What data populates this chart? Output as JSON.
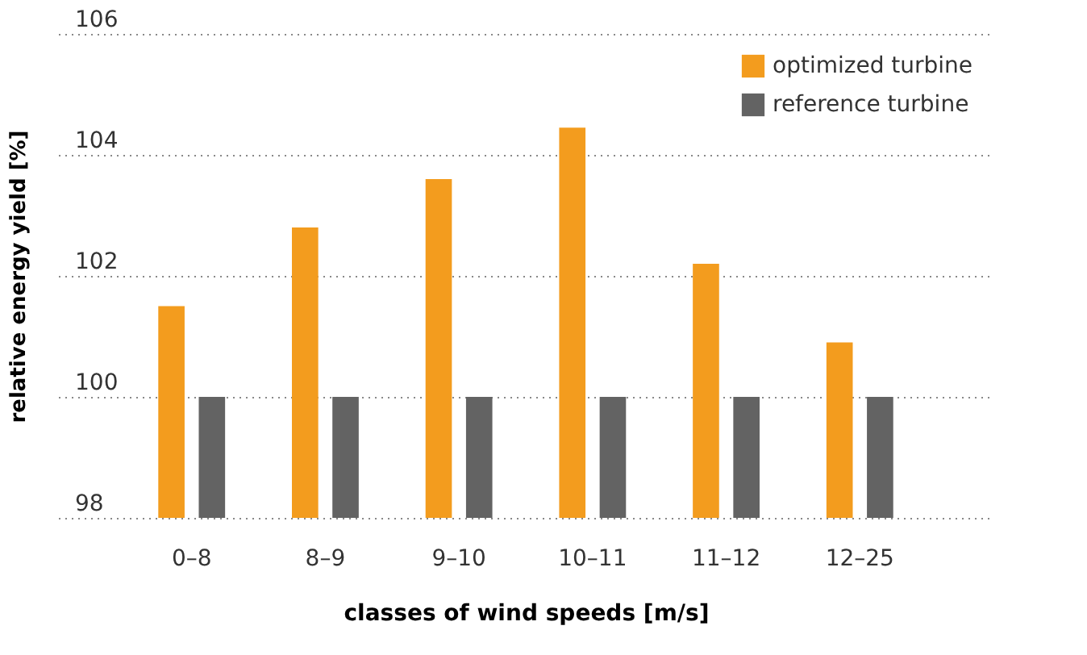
{
  "chart_data": {
    "type": "bar",
    "xlabel": "classes of wind speeds [m/s]",
    "ylabel": "relative energy yield [%]",
    "categories": [
      "0–8",
      "8–9",
      "9–10",
      "10–11",
      "11–12",
      "12–25"
    ],
    "series": [
      {
        "name": "optimized turbine",
        "color": "#f39c1e",
        "values": [
          101.5,
          102.8,
          103.6,
          104.45,
          102.2,
          100.9
        ]
      },
      {
        "name": "reference turbine",
        "color": "#636363",
        "values": [
          100,
          100,
          100,
          100,
          100,
          100
        ]
      }
    ],
    "ylim": [
      98,
      106
    ],
    "yticks": [
      98,
      100,
      102,
      104,
      106
    ],
    "grid": "y",
    "legend": "top right"
  }
}
